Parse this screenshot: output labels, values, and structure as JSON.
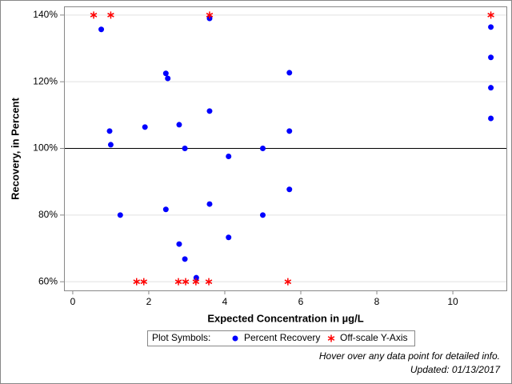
{
  "chart_data": {
    "type": "scatter",
    "x_label": "Expected Concentration in µg/L",
    "y_label": "Recovery, in Percent",
    "xlim": [
      -0.23,
      11.43
    ],
    "xticks": [
      0,
      2,
      4,
      6,
      8,
      10
    ],
    "ylim": [
      57.4,
      142.6
    ],
    "yticks": [
      {
        "value": 60,
        "label": "60%"
      },
      {
        "value": 80,
        "label": "80%"
      },
      {
        "value": 100,
        "label": "100%"
      },
      {
        "value": 120,
        "label": "120%"
      },
      {
        "value": 140,
        "label": "140%"
      }
    ],
    "grid": true,
    "reference_line": 100,
    "legend_title": "Plot Symbols:",
    "series": [
      {
        "name": "Percent Recovery",
        "color": "#0000ff",
        "marker": "circle",
        "x": [
          0.75,
          0.97,
          1.0,
          1.25,
          1.9,
          2.45,
          2.5,
          2.45,
          2.8,
          2.8,
          2.95,
          2.95,
          3.25,
          3.6,
          3.6,
          3.6,
          4.1,
          4.1,
          5.0,
          5.0,
          5.7,
          5.7,
          5.7,
          11,
          11,
          11,
          11
        ],
        "values": [
          135.7,
          105.2,
          101.1,
          80,
          106.4,
          122.5,
          121.0,
          81.7,
          107.1,
          71.3,
          100,
          66.8,
          61.2,
          139.0,
          111.2,
          83.3,
          97.6,
          73.3,
          100,
          80,
          122.7,
          105.2,
          87.7,
          136.4,
          127.3,
          118.2,
          109.0
        ]
      },
      {
        "name": "Off-scale Y-Axis",
        "color": "#ff0000",
        "marker": "asterisk",
        "x": [
          0.55,
          1.0,
          3.6,
          11,
          1.68,
          1.87,
          2.78,
          2.97,
          3.24,
          3.58,
          5.66
        ],
        "values": [
          140,
          140,
          140,
          140,
          60,
          60,
          60,
          60,
          60,
          60,
          60
        ]
      }
    ],
    "footnotes": [
      "Hover over any data point for detailed info.",
      "Updated: 01/13/2017"
    ]
  }
}
